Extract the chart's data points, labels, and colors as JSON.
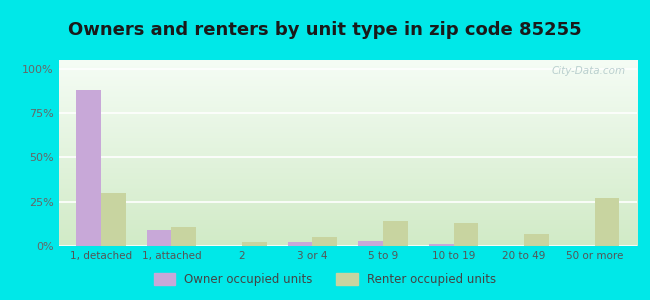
{
  "title": "Owners and renters by unit type in zip code 85255",
  "categories": [
    "1, detached",
    "1, attached",
    "2",
    "3 or 4",
    "5 to 9",
    "10 to 19",
    "20 to 49",
    "50 or more"
  ],
  "owner_values": [
    88,
    9,
    0,
    2,
    3,
    1,
    0,
    0
  ],
  "renter_values": [
    30,
    11,
    2,
    5,
    14,
    13,
    7,
    27
  ],
  "owner_color": "#c8a8d8",
  "renter_color": "#c8d4a0",
  "background_outer": "#00e8e8",
  "background_inner_topleft": "#d8eec8",
  "background_inner_topright": "#e8f8f0",
  "background_inner_bottom": "#f0f8e8",
  "ylabel_ticks": [
    "0%",
    "25%",
    "50%",
    "75%",
    "100%"
  ],
  "ytick_vals": [
    0,
    25,
    50,
    75,
    100
  ],
  "ylim": [
    0,
    105
  ],
  "legend_owner": "Owner occupied units",
  "legend_renter": "Renter occupied units",
  "title_fontsize": 13,
  "bar_width": 0.35,
  "watermark": "City-Data.com"
}
